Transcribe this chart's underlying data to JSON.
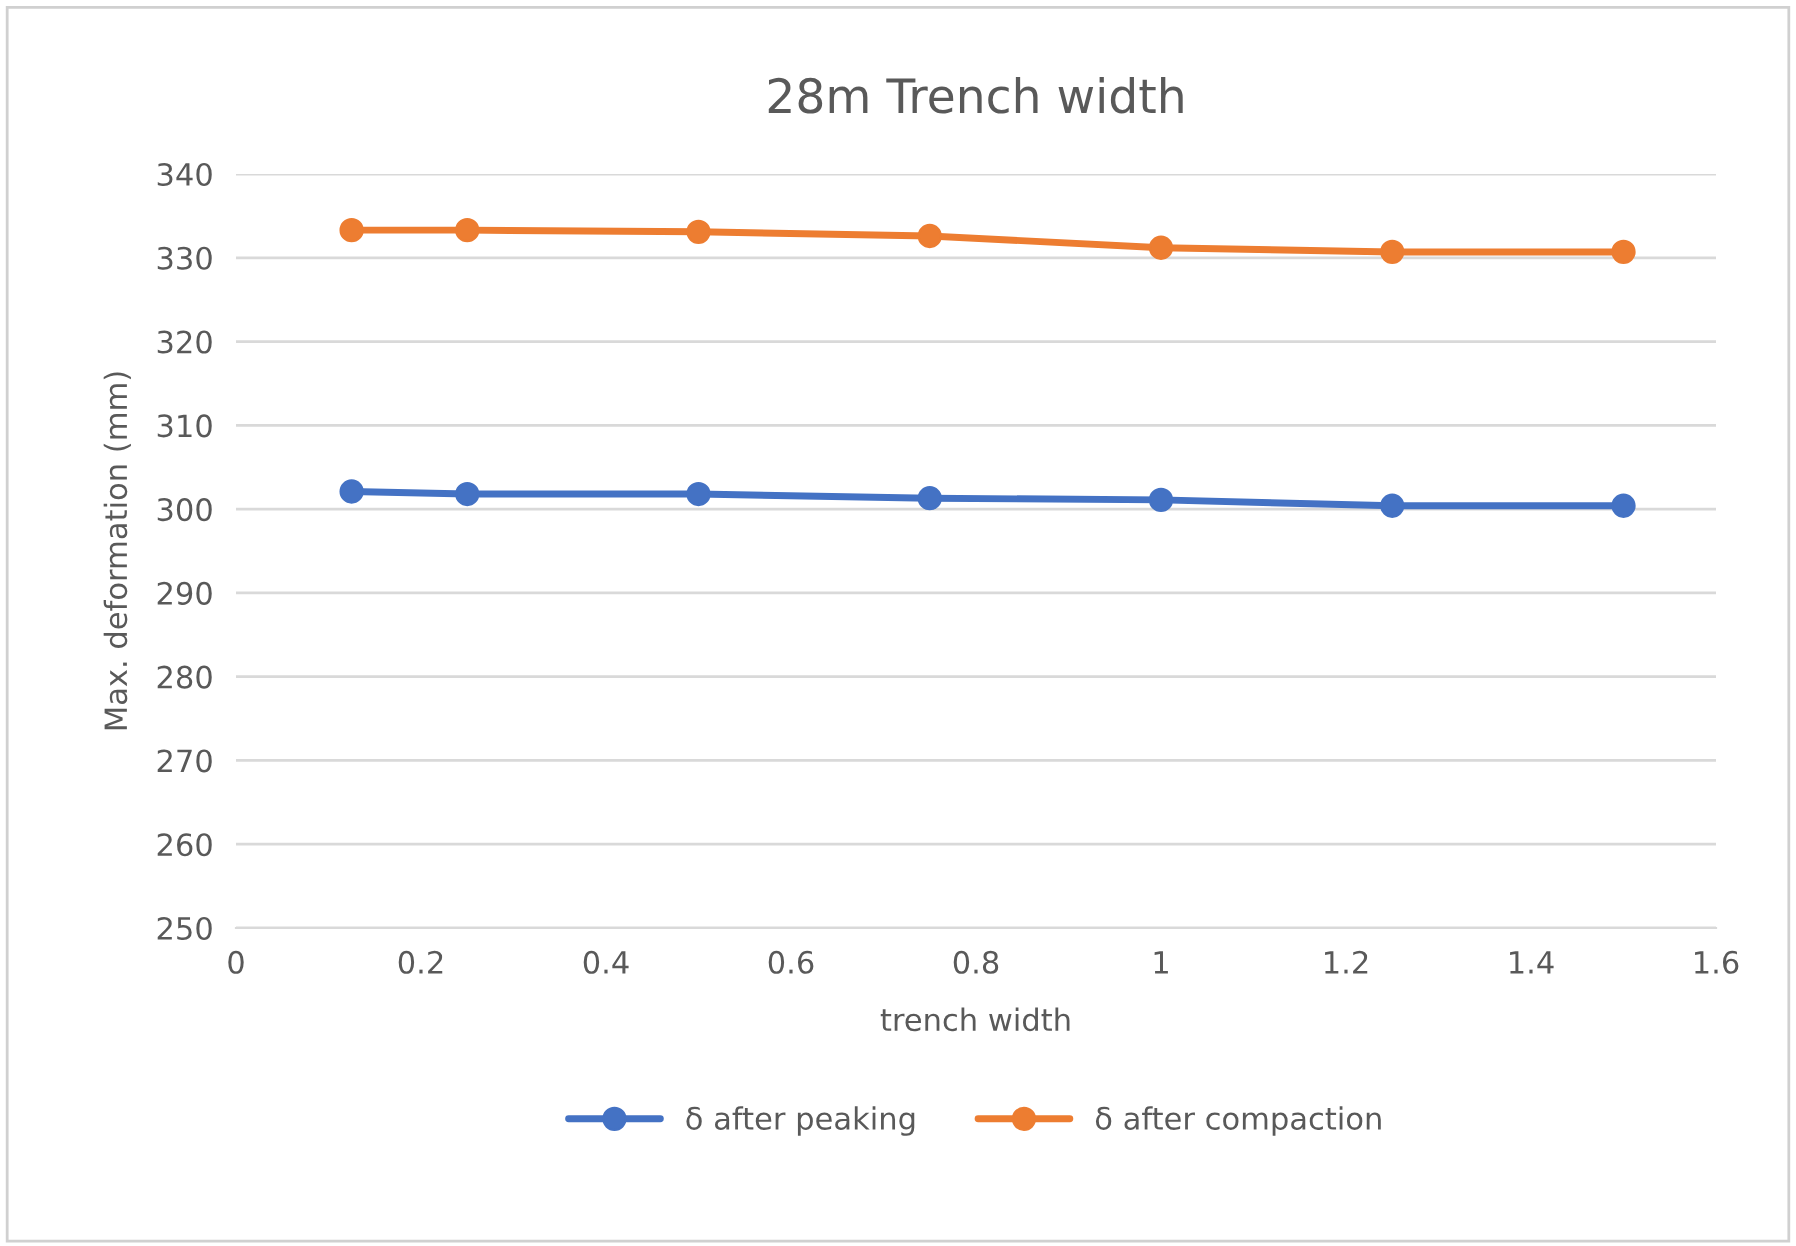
{
  "chart_data": {
    "type": "line",
    "title": "28m Trench width",
    "xlabel": "trench width",
    "ylabel": "Max. deformation (mm)",
    "x": [
      0.125,
      0.25,
      0.5,
      0.75,
      1,
      1.25,
      1.5
    ],
    "series": [
      {
        "name": "δ after peaking",
        "color": "#4472c4",
        "values": [
          302.1,
          301.8,
          301.8,
          301.3,
          301.1,
          300.4,
          300.4
        ]
      },
      {
        "name": "δ after compaction",
        "color": "#ed7d31",
        "values": [
          333.3,
          333.3,
          333.1,
          332.6,
          331.2,
          330.7,
          330.7
        ]
      }
    ],
    "xlim": [
      0,
      1.6
    ],
    "xticks": [
      0,
      0.2,
      0.4,
      0.6,
      0.8,
      1,
      1.2,
      1.4,
      1.6
    ],
    "ylim": [
      250,
      340
    ],
    "yticks": [
      250,
      260,
      270,
      280,
      290,
      300,
      310,
      320,
      330,
      340
    ],
    "grid": "y",
    "legend": "bottom",
    "marker": "circle",
    "line_style": "solid"
  }
}
